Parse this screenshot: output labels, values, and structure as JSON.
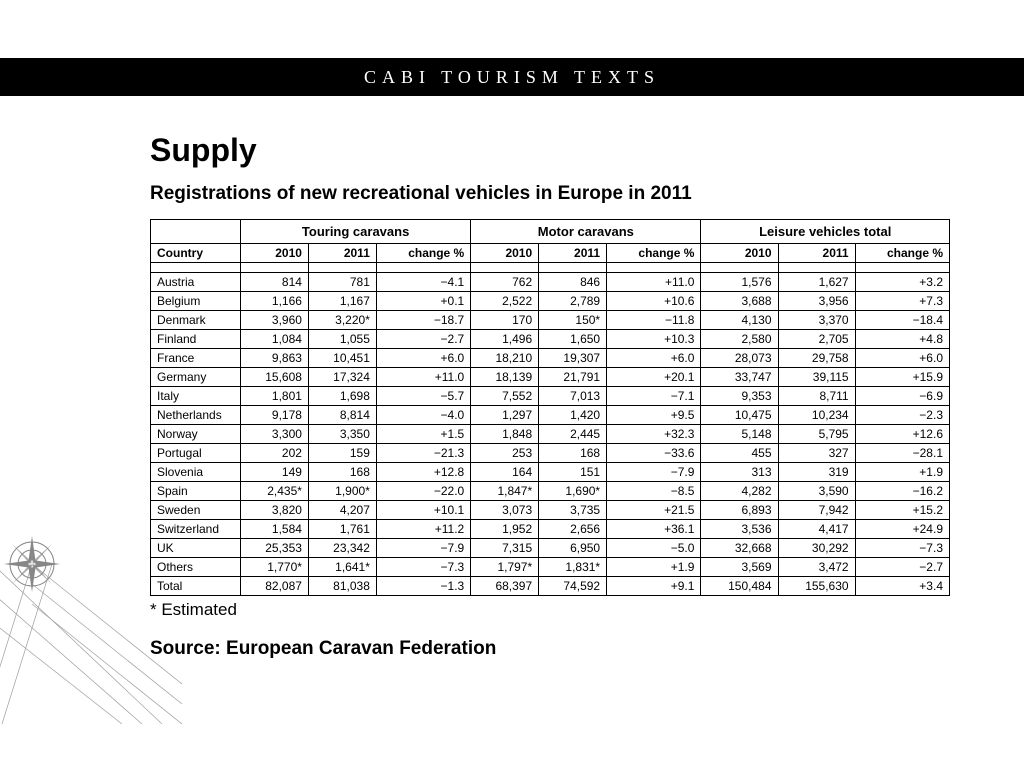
{
  "banner": "CABI TOURISM TEXTS",
  "title": "Supply",
  "subtitle": "Registrations of new recreational vehicles in Europe in 2011",
  "groupHeaders": {
    "blank": "",
    "touring": "Touring caravans",
    "motor": "Motor caravans",
    "leisure": "Leisure vehicles total"
  },
  "subHeaders": {
    "country": "Country",
    "y2010": "2010",
    "y2011": "2011",
    "change": "change %"
  },
  "rows": [
    {
      "c": "Austria",
      "t10": "814",
      "t11": "781",
      "tc": "−4.1",
      "m10": "762",
      "m11": "846",
      "mc": "+11.0",
      "l10": "1,576",
      "l11": "1,627",
      "lc": "+3.2"
    },
    {
      "c": "Belgium",
      "t10": "1,166",
      "t11": "1,167",
      "tc": "+0.1",
      "m10": "2,522",
      "m11": "2,789",
      "mc": "+10.6",
      "l10": "3,688",
      "l11": "3,956",
      "lc": "+7.3"
    },
    {
      "c": "Denmark",
      "t10": "3,960",
      "t11": "3,220*",
      "tc": "−18.7",
      "m10": "170",
      "m11": "150*",
      "mc": "−11.8",
      "l10": "4,130",
      "l11": "3,370",
      "lc": "−18.4"
    },
    {
      "c": "Finland",
      "t10": "1,084",
      "t11": "1,055",
      "tc": "−2.7",
      "m10": "1,496",
      "m11": "1,650",
      "mc": "+10.3",
      "l10": "2,580",
      "l11": "2,705",
      "lc": "+4.8"
    },
    {
      "c": "France",
      "t10": "9,863",
      "t11": "10,451",
      "tc": "+6.0",
      "m10": "18,210",
      "m11": "19,307",
      "mc": "+6.0",
      "l10": "28,073",
      "l11": "29,758",
      "lc": "+6.0"
    },
    {
      "c": "Germany",
      "t10": "15,608",
      "t11": "17,324",
      "tc": "+11.0",
      "m10": "18,139",
      "m11": "21,791",
      "mc": "+20.1",
      "l10": "33,747",
      "l11": "39,115",
      "lc": "+15.9"
    },
    {
      "c": "Italy",
      "t10": "1,801",
      "t11": "1,698",
      "tc": "−5.7",
      "m10": "7,552",
      "m11": "7,013",
      "mc": "−7.1",
      "l10": "9,353",
      "l11": "8,711",
      "lc": "−6.9"
    },
    {
      "c": "Netherlands",
      "t10": "9,178",
      "t11": "8,814",
      "tc": "−4.0",
      "m10": "1,297",
      "m11": "1,420",
      "mc": "+9.5",
      "l10": "10,475",
      "l11": "10,234",
      "lc": "−2.3"
    },
    {
      "c": "Norway",
      "t10": "3,300",
      "t11": "3,350",
      "tc": "+1.5",
      "m10": "1,848",
      "m11": "2,445",
      "mc": "+32.3",
      "l10": "5,148",
      "l11": "5,795",
      "lc": "+12.6"
    },
    {
      "c": "Portugal",
      "t10": "202",
      "t11": "159",
      "tc": "−21.3",
      "m10": "253",
      "m11": "168",
      "mc": "−33.6",
      "l10": "455",
      "l11": "327",
      "lc": "−28.1"
    },
    {
      "c": "Slovenia",
      "t10": "149",
      "t11": "168",
      "tc": "+12.8",
      "m10": "164",
      "m11": "151",
      "mc": "−7.9",
      "l10": "313",
      "l11": "319",
      "lc": "+1.9"
    },
    {
      "c": "Spain",
      "t10": "2,435*",
      "t11": "1,900*",
      "tc": "−22.0",
      "m10": "1,847*",
      "m11": "1,690*",
      "mc": "−8.5",
      "l10": "4,282",
      "l11": "3,590",
      "lc": "−16.2"
    },
    {
      "c": "Sweden",
      "t10": "3,820",
      "t11": "4,207",
      "tc": "+10.1",
      "m10": "3,073",
      "m11": "3,735",
      "mc": "+21.5",
      "l10": "6,893",
      "l11": "7,942",
      "lc": "+15.2"
    },
    {
      "c": "Switzerland",
      "t10": "1,584",
      "t11": "1,761",
      "tc": "+11.2",
      "m10": "1,952",
      "m11": "2,656",
      "mc": "+36.1",
      "l10": "3,536",
      "l11": "4,417",
      "lc": "+24.9"
    },
    {
      "c": "UK",
      "t10": "25,353",
      "t11": "23,342",
      "tc": "−7.9",
      "m10": "7,315",
      "m11": "6,950",
      "mc": "−5.0",
      "l10": "32,668",
      "l11": "30,292",
      "lc": "−7.3"
    },
    {
      "c": "Others",
      "t10": "1,770*",
      "t11": "1,641*",
      "tc": "−7.3",
      "m10": "1,797*",
      "m11": "1,831*",
      "mc": "+1.9",
      "l10": "3,569",
      "l11": "3,472",
      "lc": "−2.7"
    },
    {
      "c": "Total",
      "t10": "82,087",
      "t11": "81,038",
      "tc": "−1.3",
      "m10": "68,397",
      "m11": "74,592",
      "mc": "+9.1",
      "l10": "150,484",
      "l11": "155,630",
      "lc": "+3.4"
    }
  ],
  "footnote": "* Estimated",
  "source": "Source: European Caravan Federation"
}
